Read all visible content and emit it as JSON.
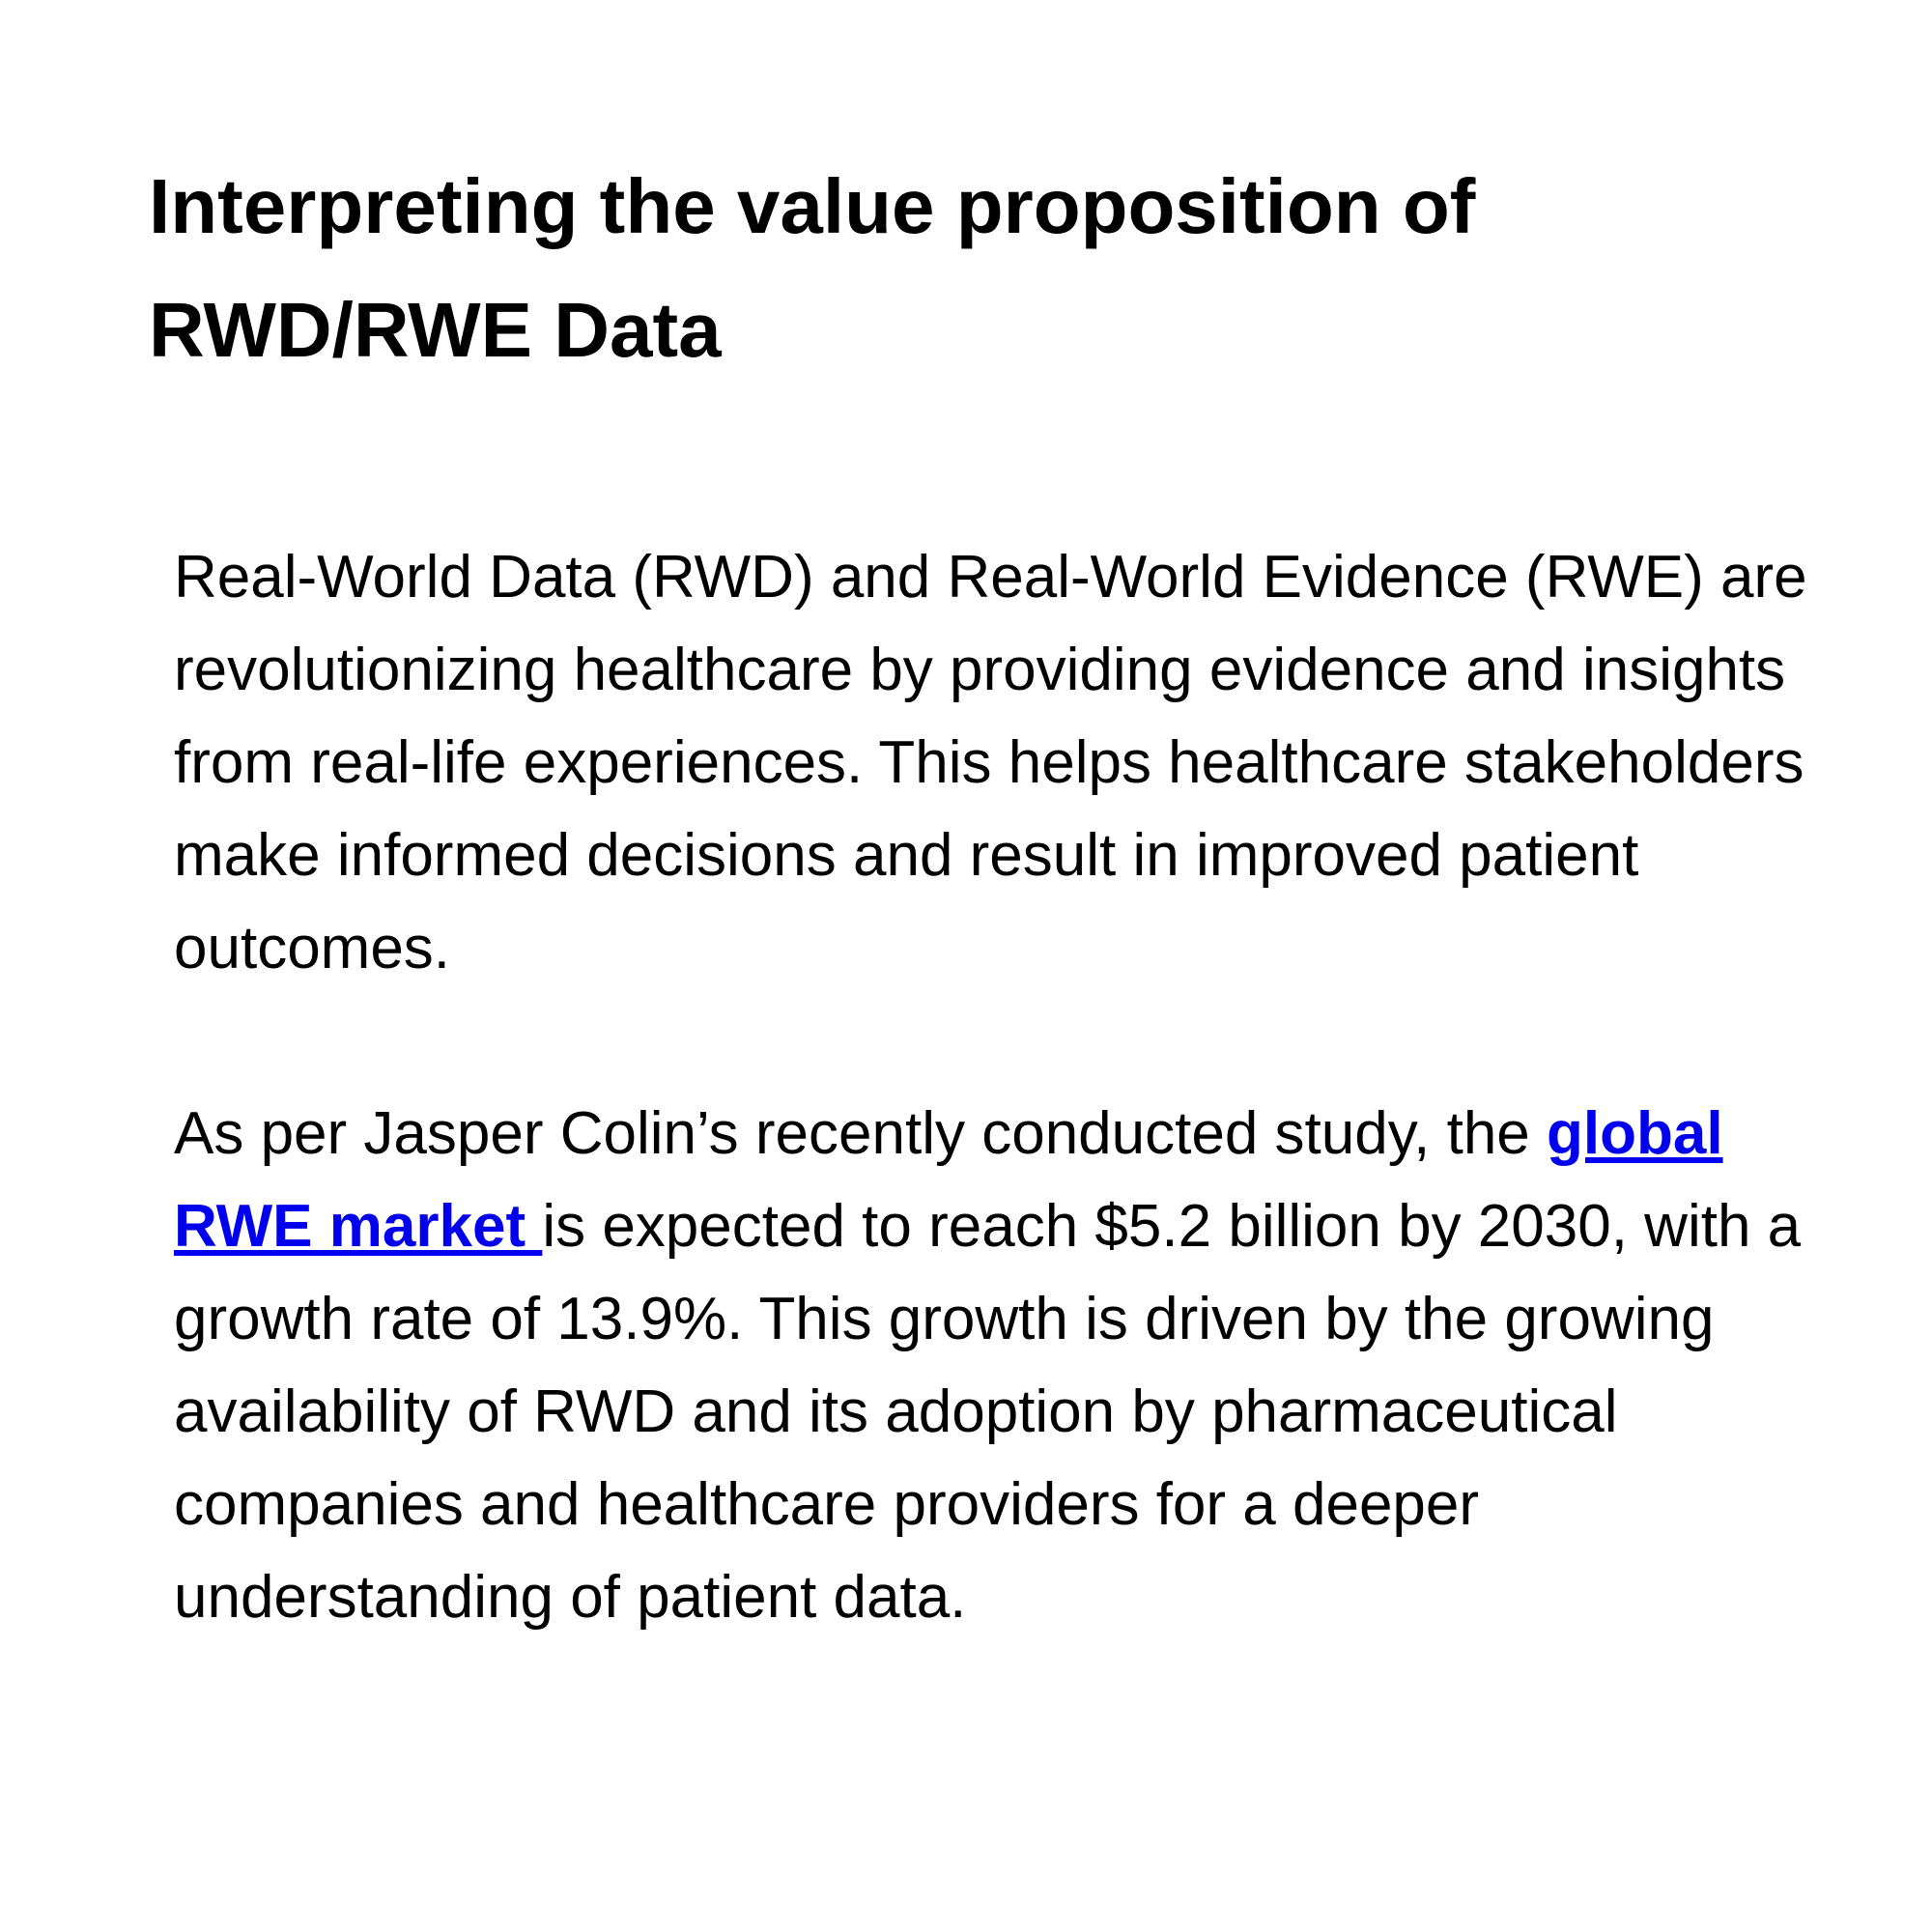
{
  "header": {
    "title": "Interpreting the value proposition of RWD/RWE Data"
  },
  "body": {
    "paragraph_1": "Real-World Data (RWD) and Real-World Evidence (RWE) are revolutionizing healthcare by providing evidence and insights from real-life experiences. This helps healthcare stakeholders make informed decisions and result in improved patient outcomes.",
    "paragraph_2": {
      "before_link": "As per Jasper Colin’s recently conducted study, the ",
      "link": "global RWE market ",
      "after_link": "is expected to reach $5.2 billion by 2030, with a growth rate of 13.9%. This growth is driven by the growing availability of RWD and its adoption by pharmaceutical companies and healthcare providers for a deeper understanding of patient data."
    }
  }
}
